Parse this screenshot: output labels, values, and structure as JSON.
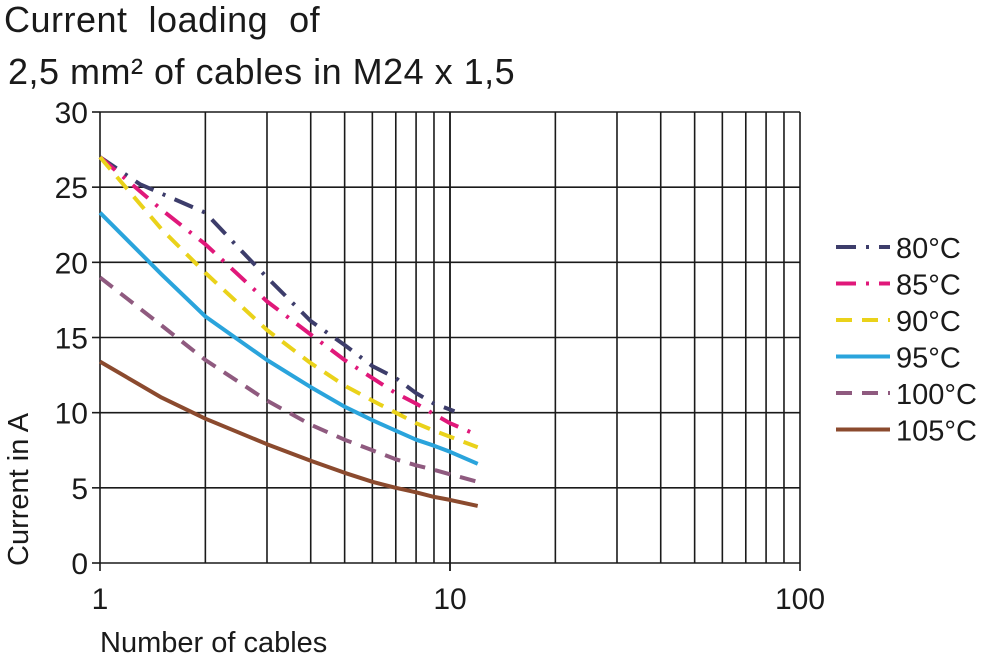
{
  "chart_data": {
    "type": "line",
    "title_lines": [
      "Current  loading  of",
      "2,5 mm² of cables in M24 x 1,5"
    ],
    "xlabel": "Number  of  cables",
    "ylabel": "Current in A",
    "xscale": "log",
    "xlim": [
      1,
      100
    ],
    "ylim": [
      0,
      30
    ],
    "xticks": [
      1,
      10,
      100
    ],
    "xtick_labels": [
      "1",
      "10",
      "100"
    ],
    "yticks": [
      0,
      5,
      10,
      15,
      20,
      25,
      30
    ],
    "ytick_labels": [
      "0",
      "5",
      "10",
      "15",
      "20",
      "25",
      "30"
    ],
    "grid": true,
    "legend_position": "right",
    "series": [
      {
        "name": "80°C",
        "color": "#3d3d6b",
        "dash": "dash-dot",
        "x": [
          1,
          1.3,
          2,
          2.6,
          3,
          4,
          5,
          6,
          7,
          8,
          9,
          10.3
        ],
        "y": [
          27,
          25.2,
          23.3,
          20.5,
          19,
          16.1,
          14.5,
          13.1,
          12.3,
          11.3,
          10.6,
          10.1
        ]
      },
      {
        "name": "85°C",
        "color": "#e0187a",
        "dash": "dash-dot",
        "x": [
          1,
          1.5,
          2,
          3,
          4,
          5,
          6,
          7,
          8,
          9,
          10,
          12
        ],
        "y": [
          27,
          23.5,
          21.2,
          17.4,
          15.2,
          13.5,
          12.3,
          11.3,
          10.6,
          9.9,
          9.3,
          8.5
        ]
      },
      {
        "name": "90°C",
        "color": "#ead21a",
        "dash": "dashed",
        "x": [
          1,
          1.5,
          2,
          3,
          4,
          5,
          6,
          7,
          8,
          9,
          10,
          12
        ],
        "y": [
          27,
          22.2,
          19.3,
          15.5,
          13.3,
          11.8,
          10.8,
          10.0,
          9.3,
          8.8,
          8.4,
          7.7
        ]
      },
      {
        "name": "95°C",
        "color": "#2aa4dc",
        "dash": "solid",
        "x": [
          1,
          1.5,
          2,
          2.5,
          3,
          4,
          5,
          6,
          7,
          8,
          9,
          10,
          12
        ],
        "y": [
          23.3,
          19.2,
          16.4,
          14.8,
          13.5,
          11.7,
          10.4,
          9.5,
          8.8,
          8.2,
          7.8,
          7.4,
          6.6
        ]
      },
      {
        "name": "100°C",
        "color": "#8f5a7f",
        "dash": "dashed",
        "x": [
          1,
          1.5,
          2,
          3,
          4,
          5,
          6,
          7,
          8,
          9,
          10,
          12
        ],
        "y": [
          19,
          15.8,
          13.5,
          10.8,
          9.2,
          8.2,
          7.5,
          6.9,
          6.5,
          6.2,
          5.9,
          5.4
        ]
      },
      {
        "name": "105°C",
        "color": "#8b4a2e",
        "dash": "solid",
        "x": [
          1,
          1.5,
          2,
          3,
          4,
          5,
          6,
          7,
          8,
          9,
          10,
          12
        ],
        "y": [
          13.4,
          11.0,
          9.6,
          7.9,
          6.8,
          6.0,
          5.4,
          5.0,
          4.7,
          4.4,
          4.2,
          3.8
        ]
      }
    ]
  }
}
